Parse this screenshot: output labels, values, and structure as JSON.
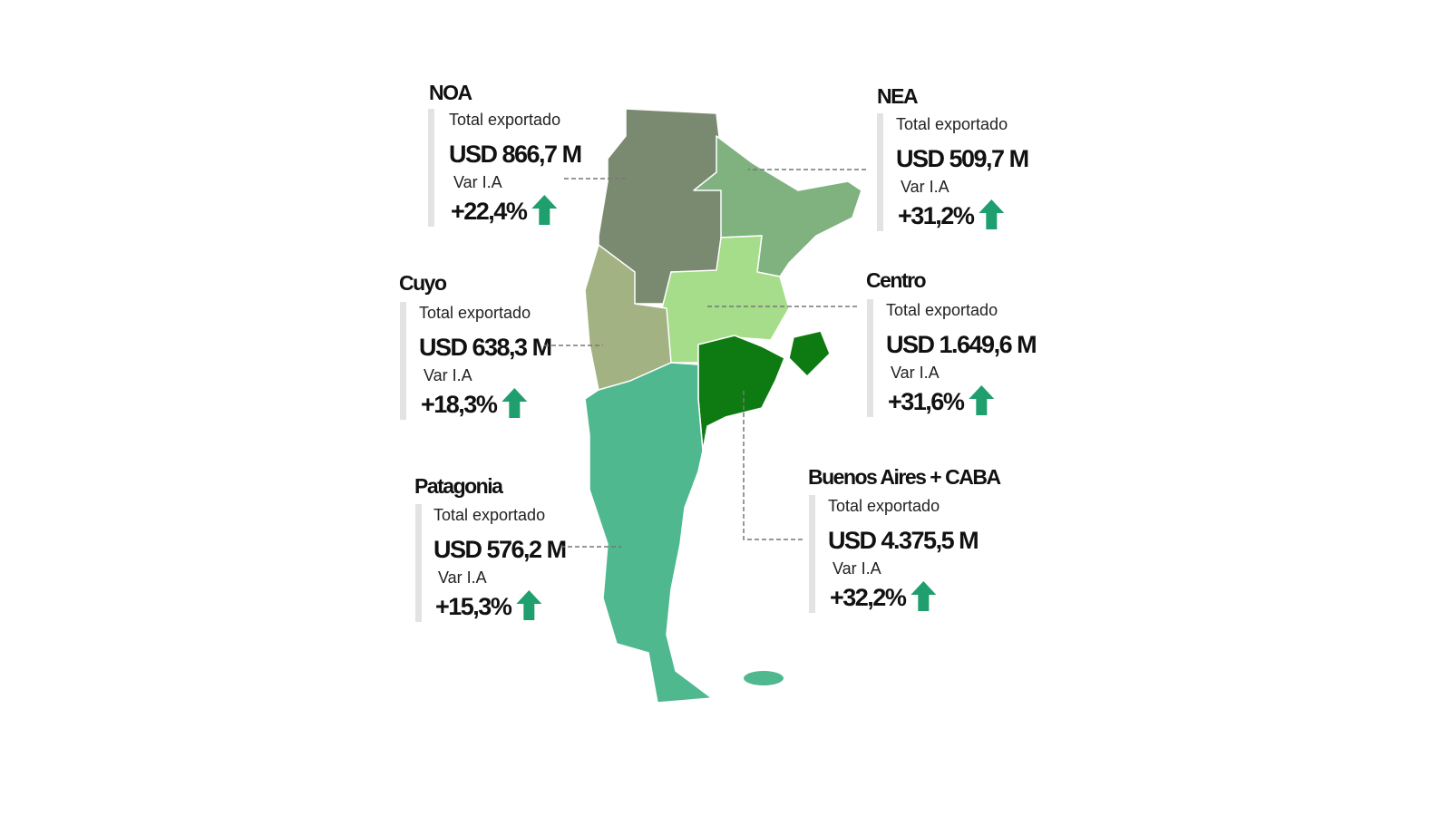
{
  "regions": [
    {
      "name": "NOA",
      "total_label": "Total exportado",
      "value": "USD 866,7 M",
      "var_label": "Var I.A",
      "var": "+22,4%"
    },
    {
      "name": "NEA",
      "total_label": "Total exportado",
      "value": "USD 509,7 M",
      "var_label": "Var I.A",
      "var": "+31,2%"
    },
    {
      "name": "Cuyo",
      "total_label": "Total exportado",
      "value": "USD 638,3 M",
      "var_label": "Var I.A",
      "var": "+18,3%"
    },
    {
      "name": "Centro",
      "total_label": "Total exportado",
      "value": "USD 1.649,6 M",
      "var_label": "Var I.A",
      "var": "+31,6%"
    },
    {
      "name": "Patagonia",
      "total_label": "Total exportado",
      "value": "USD 576,2 M",
      "var_label": "Var I.A",
      "var": "+15,3%"
    },
    {
      "name": "Buenos Aires + CABA",
      "total_label": "Total exportado",
      "value": "USD 4.375,5 M",
      "var_label": "Var I.A",
      "var": "+32,2%"
    }
  ]
}
